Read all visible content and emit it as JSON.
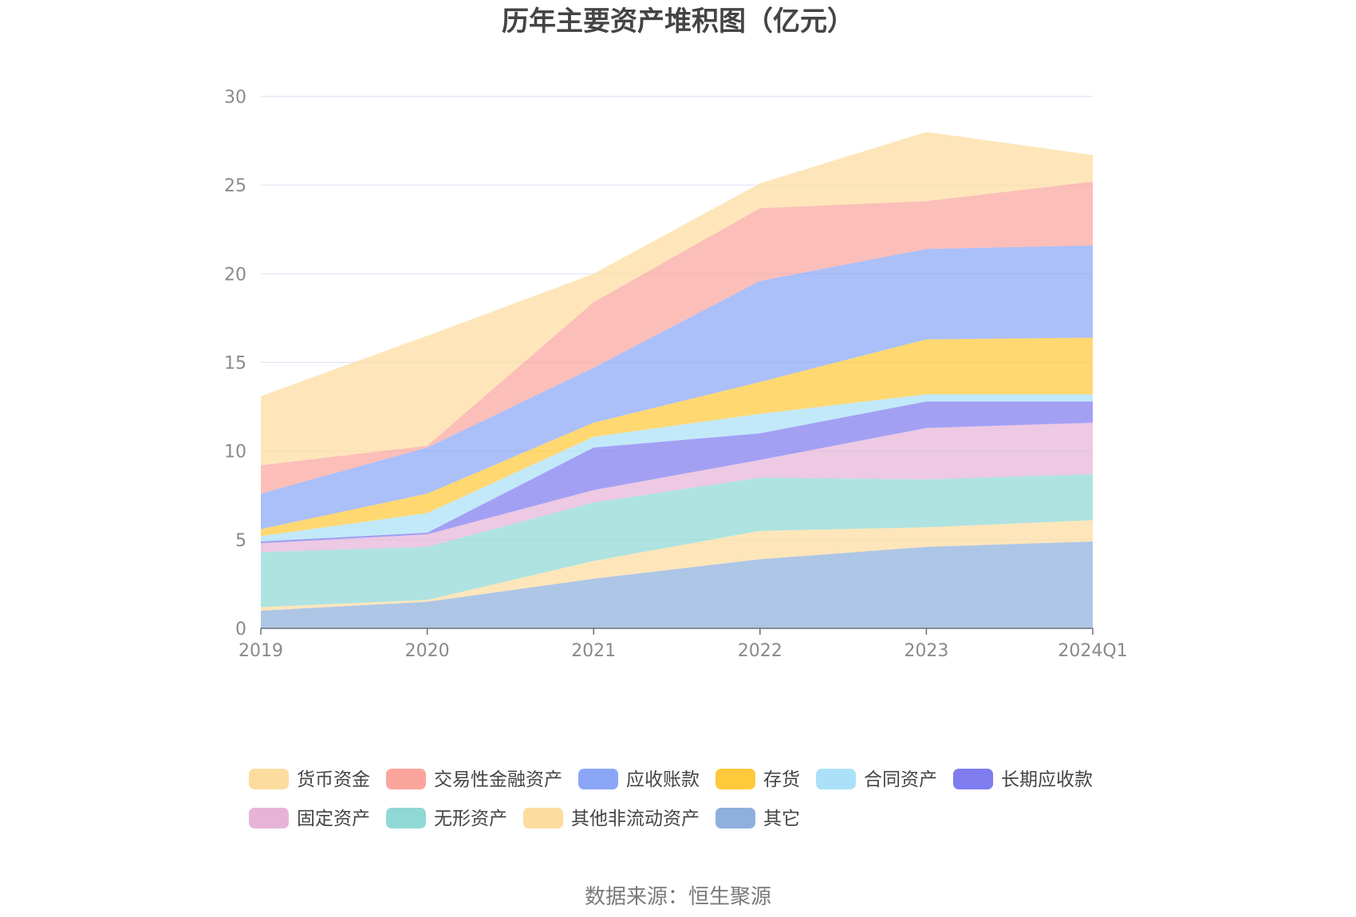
{
  "chart_data": {
    "type": "area",
    "stacked": true,
    "title": "历年主要资产堆积图（亿元）",
    "source": "数据来源：恒生聚源",
    "categories": [
      "2019",
      "2020",
      "2021",
      "2022",
      "2023",
      "2024Q1"
    ],
    "ylim": [
      0,
      30
    ],
    "yticks": [
      "0",
      "5",
      "10",
      "15",
      "20",
      "25",
      "30"
    ],
    "grid": true,
    "legend_position": "bottom",
    "series": [
      {
        "name": "其它",
        "color": "#8fb0dc",
        "values": [
          1.0,
          1.5,
          2.8,
          3.9,
          4.6,
          4.9
        ]
      },
      {
        "name": "其他非流动资产",
        "color": "#fddca0",
        "values": [
          0.2,
          0.1,
          1.0,
          1.6,
          1.1,
          1.2
        ]
      },
      {
        "name": "无形资产",
        "color": "#8fd8d6",
        "values": [
          3.1,
          3.0,
          3.3,
          3.0,
          2.7,
          2.6
        ]
      },
      {
        "name": "固定资产",
        "color": "#e6b4d8",
        "values": [
          0.5,
          0.7,
          0.7,
          1.0,
          2.9,
          2.9
        ]
      },
      {
        "name": "长期应收款",
        "color": "#7f7cf0",
        "values": [
          0.1,
          0.1,
          2.4,
          1.5,
          1.5,
          1.2
        ]
      },
      {
        "name": "合同资产",
        "color": "#abe1f8",
        "values": [
          0.3,
          1.1,
          0.6,
          1.1,
          0.4,
          0.4
        ]
      },
      {
        "name": "存货",
        "color": "#ffc93c",
        "values": [
          0.4,
          1.1,
          0.8,
          1.8,
          3.1,
          3.2
        ]
      },
      {
        "name": "应收账款",
        "color": "#8ba6f7",
        "values": [
          2.0,
          2.6,
          3.1,
          5.7,
          5.1,
          5.2
        ]
      },
      {
        "name": "交易性金融资产",
        "color": "#fba59c",
        "values": [
          1.6,
          0.1,
          3.7,
          4.1,
          2.7,
          3.6
        ]
      },
      {
        "name": "货币资金",
        "color": "#fddca0",
        "values": [
          3.9,
          6.2,
          1.6,
          1.4,
          3.9,
          1.5
        ]
      }
    ],
    "legend_order": [
      "货币资金",
      "交易性金融资产",
      "应收账款",
      "存货",
      "合同资产",
      "长期应收款",
      "固定资产",
      "无形资产",
      "其他非流动资产",
      "其它"
    ]
  }
}
